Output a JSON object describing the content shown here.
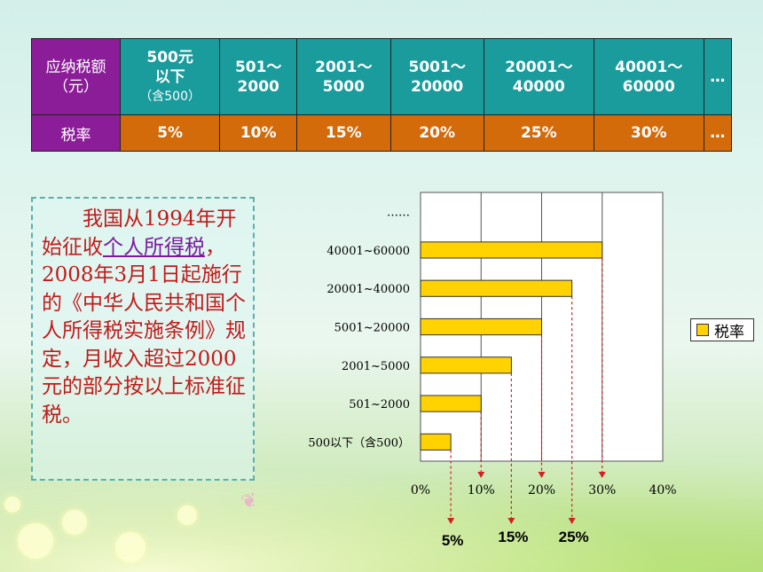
{
  "table": {
    "header_label": "应纳税额\n（元）",
    "rate_label": "税率",
    "brackets": [
      {
        "range_line1": "500元",
        "range_line2": "以下",
        "range_note": "（含500）",
        "rate": "5%"
      },
      {
        "range_line1": "501～",
        "range_line2": "2000",
        "range_note": "",
        "rate": "10%"
      },
      {
        "range_line1": "2001～",
        "range_line2": "5000",
        "range_note": "",
        "rate": "15%"
      },
      {
        "range_line1": "5001～",
        "range_line2": "20000",
        "range_note": "",
        "rate": "20%"
      },
      {
        "range_line1": "20001～",
        "range_line2": "40000",
        "range_note": "",
        "rate": "25%"
      },
      {
        "range_line1": "40001～",
        "range_line2": "60000",
        "range_note": "",
        "rate": "30%"
      },
      {
        "range_line1": "…",
        "range_line2": "",
        "range_note": "",
        "rate": "…"
      }
    ]
  },
  "note": {
    "part1": "　　我国从1994年开始征收",
    "link_text": "个人所得税",
    "part2": "，2008年3月1日起施行的《中华人民共和国个人所得税实施条例》规定，月收入超过2000元的部分按以上标准征税。"
  },
  "chart_data": {
    "type": "bar",
    "orientation": "horizontal",
    "categories": [
      "500以下（含500）",
      "501~2000",
      "2001~5000",
      "5001~20000",
      "20001~40000",
      "40001~60000"
    ],
    "top_category_label": "……",
    "series": [
      {
        "name": "税率",
        "values": [
          5,
          10,
          15,
          20,
          25,
          30
        ]
      }
    ],
    "x_ticks": [
      "0%",
      "10%",
      "20%",
      "30%",
      "40%"
    ],
    "xlim": [
      0,
      40
    ],
    "grid": true,
    "legend_position": "right",
    "bar_color": "#ffd200",
    "annotations": [
      {
        "text": "5%",
        "value": 5
      },
      {
        "text": "15%",
        "value": 15
      },
      {
        "text": "25%",
        "value": 25
      }
    ]
  },
  "colors": {
    "teal": "#1a9b9c",
    "purple": "#8b1e98",
    "orange": "#d46b0b",
    "note_text": "#c21a1a",
    "arrow": "#d42020"
  }
}
